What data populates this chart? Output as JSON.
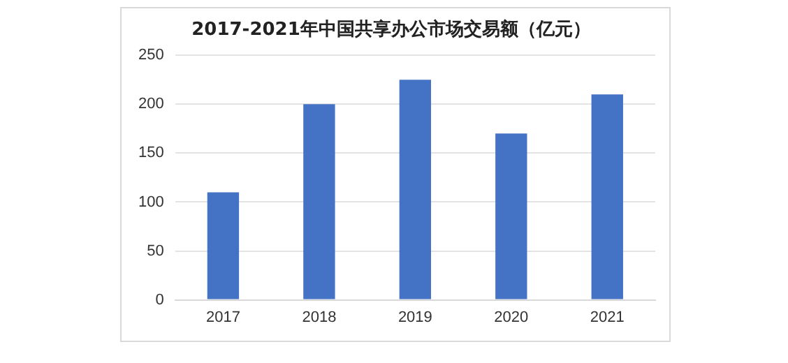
{
  "chart_data": {
    "type": "bar",
    "title": "2017-2021年中国共享办公市场交易额（亿元）",
    "categories": [
      "2017",
      "2018",
      "2019",
      "2020",
      "2021"
    ],
    "values": [
      110,
      200,
      225,
      170,
      210
    ],
    "color": "#4472c4",
    "ylim": [
      0,
      250
    ],
    "yticks": [
      0,
      50,
      100,
      150,
      200,
      250
    ],
    "grid": "y",
    "legend": false
  }
}
